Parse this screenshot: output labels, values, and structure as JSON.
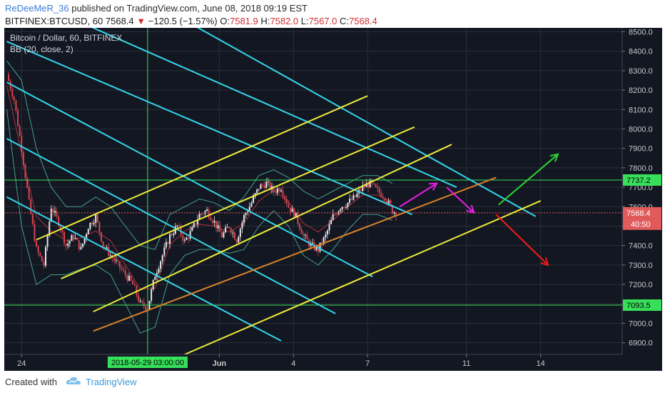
{
  "header": {
    "author": "ReDeeMeR_36",
    "published_text": " published on TradingView.com, June 08, 2018 09:19 EST",
    "symbol": "BITFINEX:BTCUSD, 60",
    "last": "7568.4",
    "change": "−120.5 (−1.57%)",
    "o_label": "O:",
    "o_value": "7581.9",
    "h_label": "H:",
    "h_value": "7582.0",
    "l_label": "L:",
    "l_value": "7567.0",
    "c_label": "C:",
    "c_value": "7568.4"
  },
  "footer": {
    "created_with": "Created with",
    "brand": "TradingView"
  },
  "chart_data": {
    "type": "candlestick",
    "title": "Bitcoin / Dollar, 60, BITFINEX",
    "indicator": "BB (20, close, 2)",
    "y_ticks": [
      "8500.0",
      "8400.0",
      "8300.0",
      "8200.0",
      "8100.0",
      "8000.0",
      "7900.0",
      "7800.0",
      "7700.0",
      "7600.0",
      "7500.0",
      "7400.0",
      "7300.0",
      "7200.0",
      "7100.0",
      "7000.0",
      "6900.0"
    ],
    "ylim": [
      6840,
      8520
    ],
    "x_ticks": [
      {
        "label": "24",
        "day": 0
      },
      {
        "label": "Jun",
        "day": 8
      },
      {
        "label": "4",
        "day": 11
      },
      {
        "label": "7",
        "day": 14
      },
      {
        "label": "11",
        "day": 18
      },
      {
        "label": "14",
        "day": 21
      }
    ],
    "xlim": [
      -0.7,
      24.3
    ],
    "crosshair_label": "2018-05-29 03:00:00",
    "crosshair_day": 5.1,
    "levels": [
      {
        "label": "7737.2",
        "value": 7737.2,
        "color": "#37e05a"
      },
      {
        "label": "7093.5",
        "value": 7093.5,
        "color": "#37e05a"
      }
    ],
    "last_price": {
      "label": "7568.4",
      "value": 7568.4,
      "color": "#e25b5b"
    },
    "countdown": {
      "label": "40:50",
      "value": 7510,
      "color": "#e25b5b"
    },
    "colors": {
      "background": "#131722",
      "grid": "#2a2e39",
      "up": "#e8e8e8",
      "down": "#d64550",
      "bb_band": "#43a08c",
      "bb_basis": "#b0313c",
      "down_channel": "#33d6ea",
      "up_channel": "#ecec3a",
      "support": "#d9822b"
    },
    "price_path": [
      [
        -0.6,
        8280
      ],
      [
        -0.3,
        8150
      ],
      [
        0.0,
        7900
      ],
      [
        0.3,
        7620
      ],
      [
        0.6,
        7380
      ],
      [
        0.9,
        7300
      ],
      [
        1.2,
        7600
      ],
      [
        1.5,
        7520
      ],
      [
        1.8,
        7400
      ],
      [
        2.1,
        7450
      ],
      [
        2.4,
        7380
      ],
      [
        2.7,
        7500
      ],
      [
        3.0,
        7550
      ],
      [
        3.3,
        7400
      ],
      [
        3.6,
        7350
      ],
      [
        3.9,
        7300
      ],
      [
        4.2,
        7250
      ],
      [
        4.5,
        7200
      ],
      [
        4.8,
        7100
      ],
      [
        5.1,
        7080
      ],
      [
        5.4,
        7250
      ],
      [
        5.7,
        7350
      ],
      [
        6.0,
        7450
      ],
      [
        6.3,
        7500
      ],
      [
        6.6,
        7420
      ],
      [
        6.9,
        7480
      ],
      [
        7.2,
        7560
      ],
      [
        7.5,
        7580
      ],
      [
        7.8,
        7520
      ],
      [
        8.1,
        7450
      ],
      [
        8.4,
        7500
      ],
      [
        8.7,
        7430
      ],
      [
        9.0,
        7550
      ],
      [
        9.3,
        7620
      ],
      [
        9.6,
        7700
      ],
      [
        9.9,
        7720
      ],
      [
        10.2,
        7680
      ],
      [
        10.5,
        7700
      ],
      [
        10.8,
        7600
      ],
      [
        11.1,
        7550
      ],
      [
        11.4,
        7450
      ],
      [
        11.7,
        7400
      ],
      [
        12.0,
        7380
      ],
      [
        12.3,
        7450
      ],
      [
        12.6,
        7550
      ],
      [
        12.9,
        7600
      ],
      [
        13.2,
        7620
      ],
      [
        13.5,
        7650
      ],
      [
        13.8,
        7700
      ],
      [
        14.1,
        7720
      ],
      [
        14.4,
        7680
      ],
      [
        14.7,
        7650
      ],
      [
        15.0,
        7580
      ],
      [
        15.2,
        7568
      ]
    ],
    "bb_upper": [
      [
        -0.6,
        8350
      ],
      [
        0.0,
        8250
      ],
      [
        0.6,
        7900
      ],
      [
        1.2,
        7700
      ],
      [
        1.8,
        7600
      ],
      [
        2.4,
        7600
      ],
      [
        3.0,
        7650
      ],
      [
        3.6,
        7600
      ],
      [
        4.2,
        7500
      ],
      [
        4.8,
        7400
      ],
      [
        5.4,
        7380
      ],
      [
        6.0,
        7560
      ],
      [
        6.6,
        7600
      ],
      [
        7.2,
        7640
      ],
      [
        7.8,
        7620
      ],
      [
        8.4,
        7580
      ],
      [
        9.0,
        7650
      ],
      [
        9.6,
        7760
      ],
      [
        10.2,
        7790
      ],
      [
        10.8,
        7750
      ],
      [
        11.4,
        7680
      ],
      [
        12.0,
        7640
      ],
      [
        12.6,
        7680
      ],
      [
        13.2,
        7720
      ],
      [
        13.8,
        7760
      ],
      [
        14.4,
        7760
      ],
      [
        15.0,
        7720
      ]
    ],
    "bb_lower": [
      [
        -0.6,
        8100
      ],
      [
        0.0,
        7500
      ],
      [
        0.6,
        7200
      ],
      [
        1.2,
        7250
      ],
      [
        1.8,
        7250
      ],
      [
        2.4,
        7280
      ],
      [
        3.0,
        7300
      ],
      [
        3.6,
        7250
      ],
      [
        4.2,
        7100
      ],
      [
        4.8,
        6950
      ],
      [
        5.4,
        6980
      ],
      [
        6.0,
        7250
      ],
      [
        6.6,
        7350
      ],
      [
        7.2,
        7380
      ],
      [
        7.8,
        7380
      ],
      [
        8.4,
        7360
      ],
      [
        9.0,
        7380
      ],
      [
        9.6,
        7500
      ],
      [
        10.2,
        7580
      ],
      [
        10.8,
        7500
      ],
      [
        11.4,
        7350
      ],
      [
        12.0,
        7300
      ],
      [
        12.6,
        7380
      ],
      [
        13.2,
        7480
      ],
      [
        13.8,
        7560
      ],
      [
        14.4,
        7560
      ],
      [
        15.0,
        7530
      ]
    ],
    "down_channel_lines": [
      [
        [
          -0.6,
          8450
        ],
        [
          15.8,
          7560
        ]
      ],
      [
        [
          -0.6,
          8240
        ],
        [
          14.2,
          7240
        ]
      ],
      [
        [
          -0.6,
          7950
        ],
        [
          12.7,
          7050
        ]
      ],
      [
        [
          -0.6,
          7650
        ],
        [
          10.5,
          6910
        ]
      ],
      [
        [
          2.0,
          8570
        ],
        [
          17.6,
          7700
        ]
      ],
      [
        [
          5.6,
          8630
        ],
        [
          20.8,
          7550
        ]
      ]
    ],
    "up_channel_lines": [
      [
        [
          0.6,
          7430
        ],
        [
          14.0,
          8170
        ]
      ],
      [
        [
          1.6,
          7230
        ],
        [
          15.9,
          8010
        ]
      ],
      [
        [
          2.9,
          7060
        ],
        [
          17.4,
          7920
        ]
      ],
      [
        [
          6.6,
          6840
        ],
        [
          21.0,
          7630
        ]
      ]
    ],
    "support_line": [
      [
        2.9,
        6960
      ],
      [
        19.2,
        7750
      ]
    ],
    "arrows": [
      {
        "color": "#e81ee8",
        "from": [
          15.3,
          7600
        ],
        "to": [
          16.8,
          7720
        ]
      },
      {
        "color": "#e81ee8",
        "from": [
          17.2,
          7700
        ],
        "to": [
          18.3,
          7570
        ]
      },
      {
        "color": "#2ed62e",
        "from": [
          19.3,
          7610
        ],
        "to": [
          21.7,
          7870
        ]
      },
      {
        "color": "#ee1c1c",
        "from": [
          19.2,
          7560
        ],
        "to": [
          21.3,
          7300
        ]
      }
    ]
  }
}
